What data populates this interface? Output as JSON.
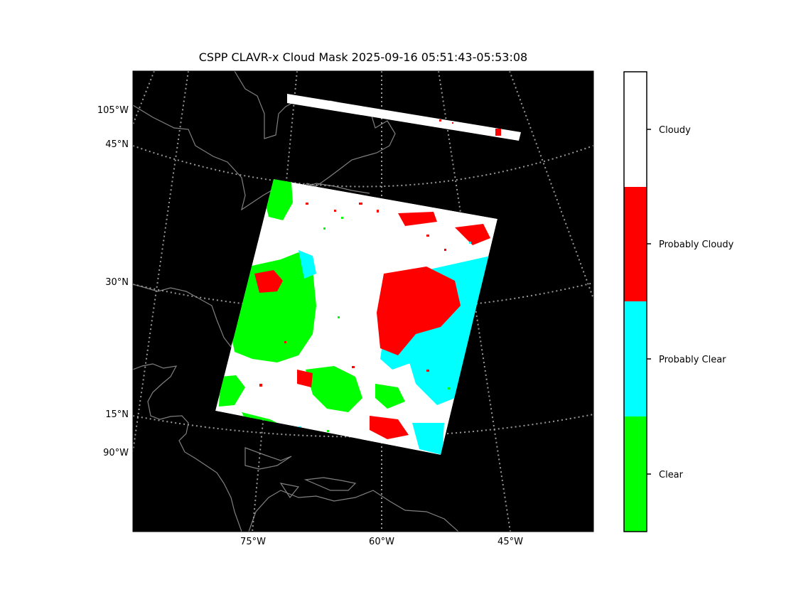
{
  "figure": {
    "title": "CSPP CLAVR-x Cloud Mask 2025-09-16 05:51:43-05:53:08"
  },
  "map": {
    "background_color": "#000000",
    "coastline_color": "#808080",
    "graticule_color": "#999999",
    "latitude_labels": [
      "45°N",
      "30°N",
      "15°N"
    ],
    "longitude_labels_bottom": [
      "75°W",
      "60°W",
      "45°W"
    ],
    "longitude_labels_left": [
      "105°W",
      "90°W"
    ]
  },
  "legend": {
    "classes": [
      {
        "label": "Clear",
        "color": "#00ff00"
      },
      {
        "label": "Probably Clear",
        "color": "#00ffff"
      },
      {
        "label": "Probably Cloudy",
        "color": "#ff0000"
      },
      {
        "label": "Cloudy",
        "color": "#ffffff"
      }
    ]
  }
}
